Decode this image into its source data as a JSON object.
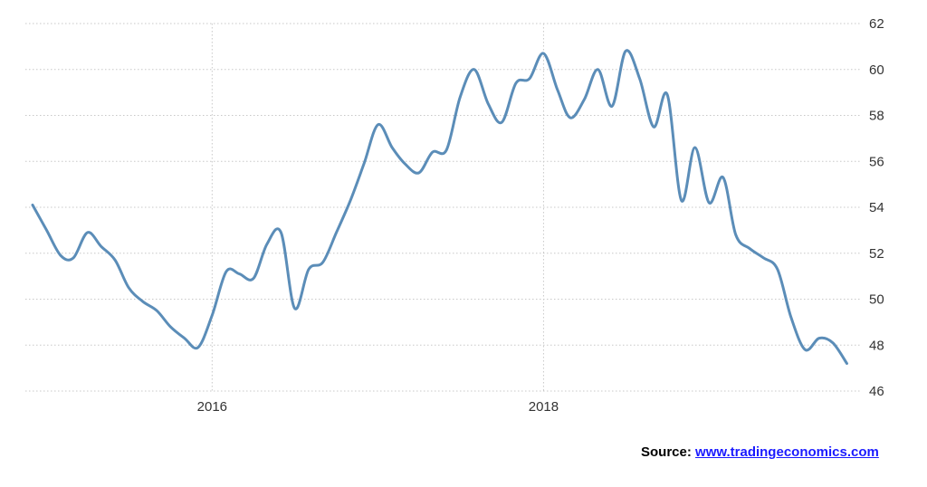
{
  "chart_data": {
    "type": "line",
    "title": "",
    "xlabel": "",
    "ylabel": "",
    "x_tick_labels": [
      "2016",
      "2018"
    ],
    "y_ticks": [
      46,
      48,
      50,
      52,
      54,
      56,
      58,
      60,
      62
    ],
    "ylim": [
      46,
      62
    ],
    "xlim": [
      "2014-11-15",
      "2019-11-30"
    ],
    "grid": true,
    "y_axis_position": "right",
    "line_color": "#5b8db8",
    "series": [
      {
        "x": [
          "2014-12-01",
          "2015-01-01",
          "2015-02-01",
          "2015-03-01",
          "2015-04-01",
          "2015-05-01",
          "2015-06-01",
          "2015-07-01",
          "2015-08-01",
          "2015-09-01",
          "2015-10-01",
          "2015-11-01",
          "2015-12-01",
          "2016-01-01",
          "2016-02-01",
          "2016-03-01",
          "2016-04-01",
          "2016-05-01",
          "2016-06-01",
          "2016-07-01",
          "2016-08-01",
          "2016-09-01",
          "2016-10-01",
          "2016-11-01",
          "2016-12-01",
          "2017-01-01",
          "2017-02-01",
          "2017-03-01",
          "2017-04-01",
          "2017-05-01",
          "2017-06-01",
          "2017-07-01",
          "2017-08-01",
          "2017-09-01",
          "2017-10-01",
          "2017-11-01",
          "2017-12-01",
          "2018-01-01",
          "2018-02-01",
          "2018-03-01",
          "2018-04-01",
          "2018-05-01",
          "2018-06-01",
          "2018-07-01",
          "2018-08-01",
          "2018-09-01",
          "2018-10-01",
          "2018-11-01",
          "2018-12-01",
          "2019-01-01",
          "2019-02-01",
          "2019-03-01",
          "2019-04-01",
          "2019-05-01",
          "2019-06-01",
          "2019-07-01",
          "2019-08-01",
          "2019-09-01",
          "2019-10-01",
          "2019-11-01"
        ],
        "values": [
          54.1,
          53.0,
          51.9,
          51.8,
          52.9,
          52.3,
          51.7,
          50.5,
          49.9,
          49.5,
          48.8,
          48.3,
          47.9,
          49.3,
          51.2,
          51.1,
          50.9,
          52.4,
          52.9,
          49.6,
          51.3,
          51.6,
          52.9,
          54.3,
          55.9,
          57.6,
          56.6,
          55.9,
          55.5,
          56.4,
          56.5,
          58.8,
          60.0,
          58.5,
          57.7,
          59.4,
          59.6,
          60.7,
          59.1,
          57.9,
          58.7,
          60.0,
          58.4,
          60.8,
          59.6,
          57.5,
          58.9,
          54.3,
          56.6,
          54.2,
          55.3,
          52.8,
          52.2,
          51.8,
          51.3,
          49.2,
          47.8,
          48.3,
          48.1,
          47.2
        ]
      }
    ]
  },
  "footer": {
    "source_label": "Source:",
    "source_link": "www.tradingeconomics.com"
  }
}
